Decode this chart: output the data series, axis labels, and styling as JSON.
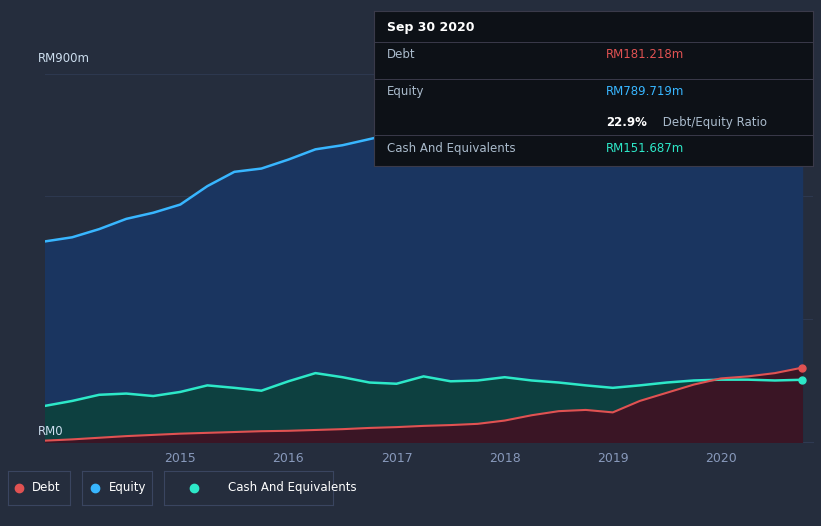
{
  "bg_color": "#252d3d",
  "plot_bg_color": "#252d3d",
  "tooltip": {
    "date": "Sep 30 2020",
    "debt_label": "Debt",
    "debt_value": "RM181.218m",
    "equity_label": "Equity",
    "equity_value": "RM789.719m",
    "ratio_bold": "22.9%",
    "ratio_rest": " Debt/Equity Ratio",
    "cash_label": "Cash And Equivalents",
    "cash_value": "RM151.687m",
    "debt_color": "#e05252",
    "equity_color": "#38b6ff",
    "cash_color": "#2de8c8"
  },
  "ylabel_top": "RM900m",
  "ylabel_bottom": "RM0",
  "legend": [
    {
      "label": "Debt",
      "color": "#e05252"
    },
    {
      "label": "Equity",
      "color": "#38b6ff"
    },
    {
      "label": "Cash And Equivalents",
      "color": "#2de8c8"
    }
  ],
  "equity_line_color": "#38b6ff",
  "equity_fill_color": "#1a3560",
  "debt_line_color": "#e05252",
  "cash_line_color": "#2de8c8",
  "cash_fill_color": "#0d4040",
  "grid_color": "#2f3a52",
  "time": [
    2013.75,
    2014.0,
    2014.25,
    2014.5,
    2014.75,
    2015.0,
    2015.25,
    2015.5,
    2015.75,
    2016.0,
    2016.25,
    2016.5,
    2016.75,
    2017.0,
    2017.25,
    2017.5,
    2017.75,
    2018.0,
    2018.25,
    2018.5,
    2018.75,
    2019.0,
    2019.25,
    2019.5,
    2019.75,
    2020.0,
    2020.25,
    2020.5,
    2020.75
  ],
  "equity": [
    490,
    500,
    520,
    545,
    560,
    580,
    625,
    660,
    668,
    690,
    715,
    725,
    740,
    755,
    775,
    780,
    790,
    800,
    812,
    818,
    808,
    790,
    792,
    793,
    790,
    790,
    791,
    790,
    789.719
  ],
  "cash": [
    88,
    100,
    115,
    118,
    112,
    122,
    138,
    132,
    125,
    148,
    168,
    158,
    145,
    142,
    160,
    148,
    150,
    158,
    150,
    145,
    138,
    132,
    138,
    145,
    150,
    152,
    152,
    150,
    151.687
  ],
  "debt": [
    3,
    6,
    10,
    14,
    17,
    20,
    22,
    24,
    26,
    27,
    29,
    31,
    34,
    36,
    39,
    41,
    44,
    52,
    65,
    75,
    78,
    72,
    100,
    120,
    140,
    155,
    160,
    168,
    181.218
  ],
  "ylim": [
    0,
    900
  ],
  "xlim": [
    2013.75,
    2020.85
  ]
}
